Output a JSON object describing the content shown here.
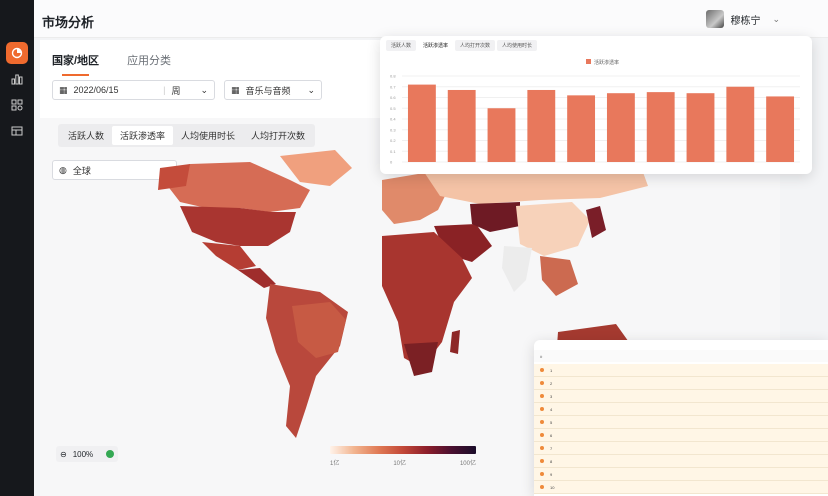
{
  "app": {
    "page_title": "市场分析",
    "user_name": "穆栋宁"
  },
  "colors": {
    "accent": "#ef6a2e",
    "sidebar_bg": "#16181c",
    "bar": "#e8785c"
  },
  "sidebar": {
    "items": [
      {
        "icon": "pie-chart-icon"
      },
      {
        "icon": "bar-chart-icon"
      },
      {
        "icon": "grid-apps-icon"
      },
      {
        "icon": "table-icon"
      }
    ]
  },
  "main": {
    "tabs": [
      {
        "label": "国家/地区"
      },
      {
        "label": "应用分类"
      }
    ],
    "filters": {
      "date": "2022/06/15",
      "period": "周",
      "category": "音乐与音频",
      "region": "全球"
    },
    "metric_tabs": [
      {
        "label": "活跃人数"
      },
      {
        "label": "活跃渗透率"
      },
      {
        "label": "人均使用时长"
      },
      {
        "label": "人均打开次数"
      }
    ],
    "zoom": "100%",
    "legend": {
      "min": "1亿",
      "mid": "10亿",
      "max": "100亿"
    }
  },
  "floating_chart": {
    "tabs": [
      {
        "label": "活跃人数"
      },
      {
        "label": "活跃渗透率"
      },
      {
        "label": "人均打开次数"
      },
      {
        "label": "人均使用时长"
      }
    ],
    "chart_data": {
      "type": "bar",
      "legend": "活跃渗透率",
      "categories": [
        "",
        "",
        " ",
        "",
        "",
        "",
        "",
        "",
        "",
        ""
      ],
      "values": [
        0.72,
        0.67,
        0.5,
        0.67,
        0.62,
        0.64,
        0.65,
        0.64,
        0.7,
        0.61
      ],
      "ylim": [
        0,
        0.8
      ],
      "yticks": [
        "0.8",
        "0.7",
        "0.6",
        "0.5",
        "0.4",
        "0.3",
        "0.2",
        "0.1",
        "0"
      ]
    }
  },
  "floating_table": {
    "rows": [
      {
        "rank": "1"
      },
      {
        "rank": "2"
      },
      {
        "rank": "3"
      },
      {
        "rank": "4"
      },
      {
        "rank": "5"
      },
      {
        "rank": "6"
      },
      {
        "rank": "7"
      },
      {
        "rank": "8"
      },
      {
        "rank": "9"
      },
      {
        "rank": "10"
      }
    ]
  }
}
